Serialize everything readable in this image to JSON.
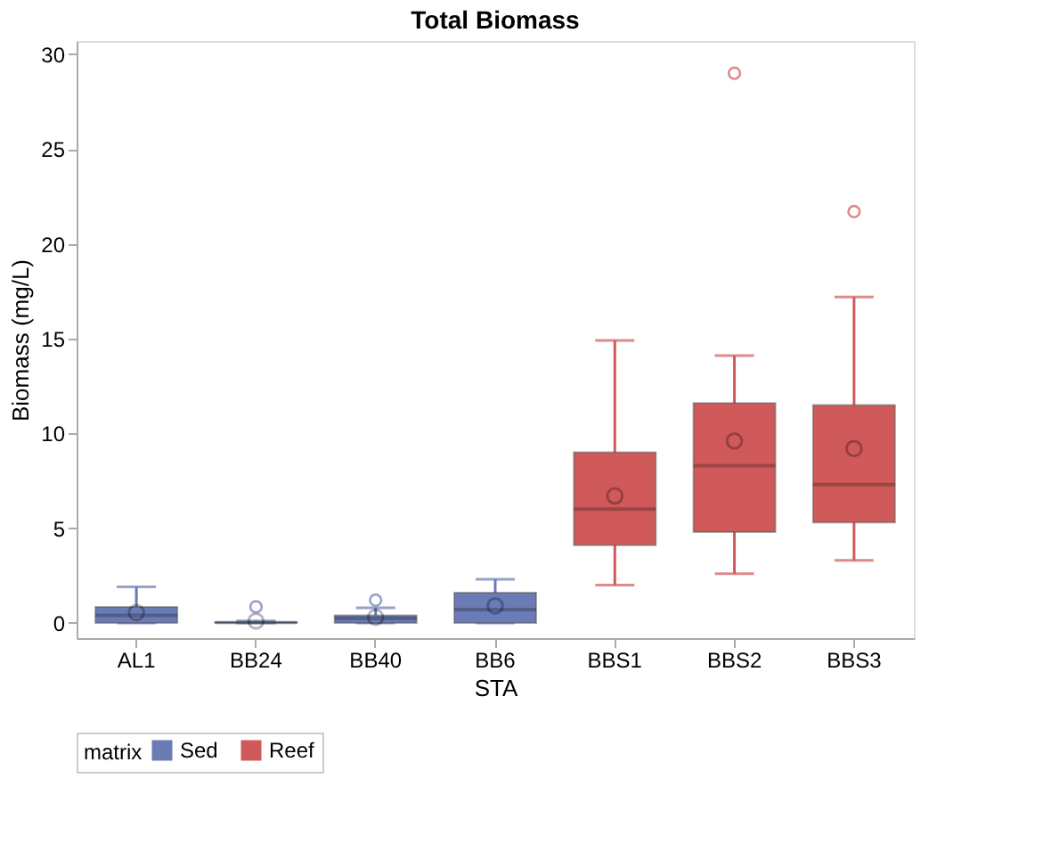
{
  "chart_data": {
    "type": "box",
    "title": "Total Biomass",
    "xlabel": "STA",
    "ylabel": "Biomass (mg/L)",
    "legend_title": "matrix",
    "categories": [
      "AL1",
      "BB24",
      "BB40",
      "BB6",
      "BBS1",
      "BBS2",
      "BBS3"
    ],
    "ylim": [
      -0.8,
      30.7
    ],
    "yticks": [
      0,
      5,
      10,
      15,
      20,
      25,
      30
    ],
    "grid": false,
    "legend": "bottom",
    "series": [
      {
        "name": "Sed",
        "color": "#6a7bb5",
        "boxes": [
          {
            "low": 0,
            "q1": 0,
            "median": 0.4,
            "q3": 0.85,
            "high": 1.9,
            "mean": 0.55
          },
          {
            "low": 0,
            "q1": 0,
            "median": 0.02,
            "q3": 0.05,
            "high": 0.1,
            "mean": 0.1,
            "outliers": [
              0.85
            ]
          },
          {
            "low": 0,
            "q1": 0,
            "median": 0.25,
            "q3": 0.4,
            "high": 0.8,
            "mean": 0.3,
            "outliers": [
              1.2
            ]
          },
          {
            "low": 0,
            "q1": 0,
            "median": 0.7,
            "q3": 1.6,
            "high": 2.3,
            "mean": 0.9
          },
          null,
          null,
          null
        ]
      },
      {
        "name": "Reef",
        "color": "#d05a5a",
        "boxes": [
          null,
          null,
          null,
          null,
          {
            "low": 2.0,
            "q1": 4.1,
            "median": 6.0,
            "q3": 9.0,
            "high": 14.9,
            "mean": 6.7
          },
          {
            "low": 2.6,
            "q1": 4.8,
            "median": 8.3,
            "q3": 11.6,
            "high": 14.1,
            "mean": 9.6,
            "outliers": [
              29.0
            ]
          },
          {
            "low": 3.3,
            "q1": 5.3,
            "median": 7.3,
            "q3": 11.5,
            "high": 17.2,
            "mean": 9.2,
            "outliers": [
              21.7
            ]
          }
        ]
      }
    ]
  }
}
